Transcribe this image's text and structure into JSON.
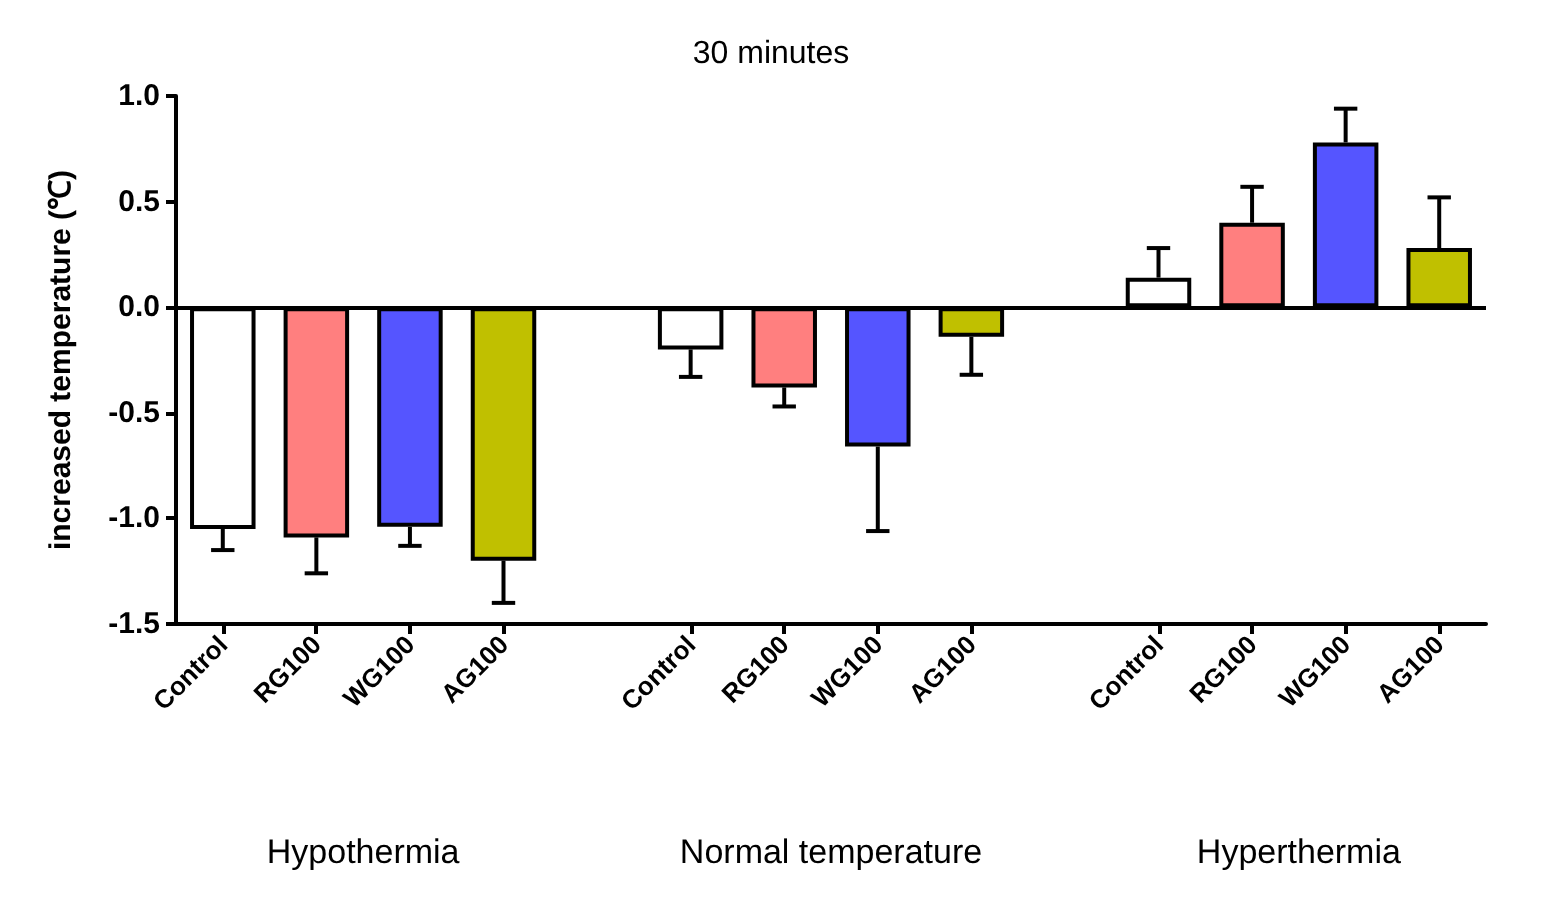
{
  "chart_data": {
    "type": "bar",
    "title": "30 minutes",
    "ylabel": "increased temperature (℃)",
    "categories": [
      "Control",
      "RG100",
      "WG100",
      "AG100",
      null,
      "Control",
      "RG100",
      "WG100",
      "AG100",
      null,
      "Control",
      "RG100",
      "WG100",
      "AG100"
    ],
    "values": [
      -1.05,
      -1.09,
      -1.04,
      -1.2,
      null,
      -0.2,
      -0.38,
      -0.66,
      -0.14,
      null,
      0.14,
      0.4,
      0.78,
      0.28
    ],
    "colors": [
      "#ffffff",
      "#ff7f7f",
      "#5555ff",
      "#c0c000",
      null,
      "#ffffff",
      "#ff7f7f",
      "#5555ff",
      "#c0c000",
      null,
      "#ffffff",
      "#ff7f7f",
      "#5555ff",
      "#c0c000"
    ],
    "errors": [
      [
        -1.15,
        -1.05
      ],
      [
        -1.26,
        -1.09
      ],
      [
        -1.13,
        -1.04
      ],
      [
        -1.4,
        -1.2
      ],
      null,
      [
        -0.33,
        -0.2
      ],
      [
        -0.47,
        -0.38
      ],
      [
        -1.06,
        -0.66
      ],
      [
        -0.32,
        -0.14
      ],
      null,
      [
        0.14,
        0.28
      ],
      [
        0.4,
        0.57
      ],
      [
        0.78,
        0.94
      ],
      [
        0.28,
        0.52
      ]
    ],
    "ylim": [
      -1.5,
      1
    ],
    "yticks": [
      {
        "value": -1.5,
        "label": "-1.5"
      },
      {
        "value": -1,
        "label": "-1.0"
      },
      {
        "value": -0.5,
        "label": "-0.5"
      },
      {
        "value": 0,
        "label": "0.0"
      },
      {
        "value": 0.5,
        "label": "0.5"
      },
      {
        "value": 1,
        "label": "1.0"
      }
    ],
    "ref_lines": [
      {
        "axis": "y",
        "value": 0,
        "color": "#000000"
      }
    ],
    "annotations": [
      "Hypothermia",
      "Normal temperature",
      "Hyperthermia"
    ],
    "grid": false
  }
}
